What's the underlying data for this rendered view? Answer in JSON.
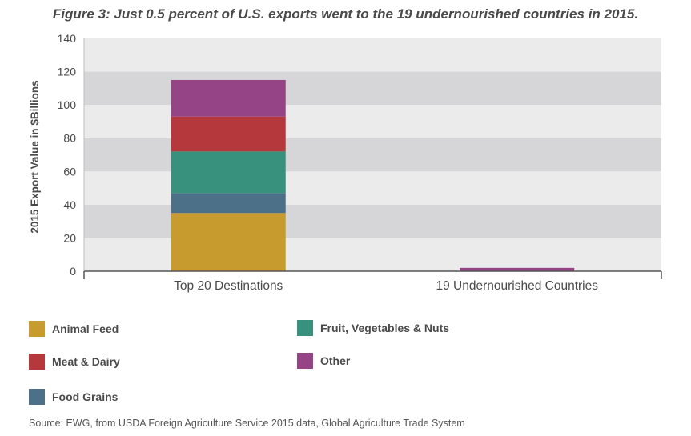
{
  "chart_data": {
    "type": "bar",
    "stacked": true,
    "title": "Figure 3: Just 0.5 percent of U.S. exports went to the 19 undernourished countries in 2015.",
    "ylabel": "2015 Export Value in $Billions",
    "xlabel": "",
    "ylim": [
      0,
      140
    ],
    "yticks": [
      0,
      20,
      40,
      60,
      80,
      100,
      120,
      140
    ],
    "categories": [
      "Top 20 Destinations",
      "19 Undernourished Countries"
    ],
    "series": [
      {
        "name": "Animal Feed",
        "color": "#c89b2e",
        "values": [
          35,
          0
        ]
      },
      {
        "name": "Food Grains",
        "color": "#4d7089",
        "values": [
          12,
          0
        ]
      },
      {
        "name": "Fruit, Vegetables & Nuts",
        "color": "#38917c",
        "values": [
          25,
          0
        ]
      },
      {
        "name": "Meat & Dairy",
        "color": "#b5383c",
        "values": [
          21,
          0
        ]
      },
      {
        "name": "Other",
        "color": "#954586",
        "values": [
          22,
          2
        ]
      }
    ]
  },
  "legend": {
    "animal_feed": "Animal Feed",
    "fruit_veg_nuts": "Fruit, Vegetables & Nuts",
    "meat_dairy": "Meat & Dairy",
    "other": "Other",
    "food_grains": "Food Grains"
  },
  "source": "Source: EWG, from USDA Foreign Agriculture Service 2015 data, Global Agriculture Trade System"
}
